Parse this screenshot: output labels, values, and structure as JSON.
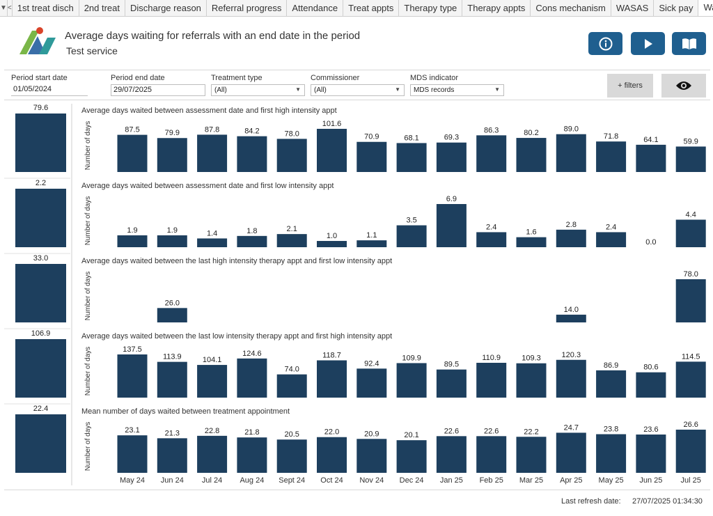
{
  "tabs": {
    "items": [
      "1st treat disch",
      "2nd treat",
      "Discharge reason",
      "Referral progress",
      "Attendance",
      "Treat appts",
      "Therapy type",
      "Therapy appts",
      "Cons mechanism",
      "WASAS",
      "Sick pay",
      "Wait"
    ],
    "active_index": 11
  },
  "header": {
    "title": "Average days waiting for referrals with an end date in the period",
    "subtitle": "Test service",
    "buttons": [
      "info-icon",
      "play-icon",
      "book-icon"
    ]
  },
  "filters": {
    "period_start": {
      "label": "Period start date",
      "value": "01/05/2024"
    },
    "period_end": {
      "label": "Period end date",
      "value": "29/07/2025"
    },
    "treatment_type": {
      "label": "Treatment type",
      "value": "(All)"
    },
    "commissioner": {
      "label": "Commissioner",
      "value": "(All)"
    },
    "mds_indicator": {
      "label": "MDS indicator",
      "value": "MDS records"
    },
    "more_filters_label": "+ filters",
    "eye_icon": "eye-icon"
  },
  "colors": {
    "bar": "#1d3f5e",
    "button": "#1f5f8f",
    "accent_green": "#7ab648",
    "accent_red": "#d9442a"
  },
  "chart_data": {
    "type": "bar",
    "categories": [
      "May 24",
      "Jun 24",
      "Jul 24",
      "Aug 24",
      "Sept 24",
      "Oct 24",
      "Nov 24",
      "Dec 24",
      "Jan 25",
      "Feb 25",
      "Mar 25",
      "Apr 25",
      "May 25",
      "Jun 25",
      "Jul 25"
    ],
    "ylabel": "Number of days",
    "panels": [
      {
        "title": "Average days waited between assessment date and first high intensity appt",
        "summary": 79.6,
        "values": [
          87.5,
          79.9,
          87.8,
          84.2,
          78.0,
          101.6,
          70.9,
          68.1,
          69.3,
          86.3,
          80.2,
          89.0,
          71.8,
          64.1,
          59.9
        ]
      },
      {
        "title": "Average days waited between assessment date and first low intensity appt",
        "summary": 2.2,
        "values": [
          1.9,
          1.9,
          1.4,
          1.8,
          2.1,
          1.0,
          1.1,
          3.5,
          6.9,
          2.4,
          1.6,
          2.8,
          2.4,
          0.0,
          4.4
        ]
      },
      {
        "title": "Average days waited between the last high intensity therapy appt and first low intensity appt",
        "summary": 33.0,
        "values": [
          null,
          26.0,
          null,
          null,
          null,
          null,
          null,
          null,
          null,
          null,
          null,
          14.0,
          null,
          null,
          78.0
        ]
      },
      {
        "title": "Average days waited between the last low intensity therapy appt and first high intensity appt",
        "summary": 106.9,
        "values": [
          137.5,
          113.9,
          104.1,
          124.6,
          74.0,
          118.7,
          92.4,
          109.9,
          89.5,
          110.9,
          109.3,
          120.3,
          86.9,
          80.6,
          114.5
        ]
      },
      {
        "title": "Mean number of days waited between treatment appointment",
        "summary": 22.4,
        "values": [
          23.1,
          21.3,
          22.8,
          21.8,
          20.5,
          22.0,
          20.9,
          20.1,
          22.6,
          22.6,
          22.2,
          24.7,
          23.8,
          23.6,
          26.6
        ]
      }
    ]
  },
  "footer": {
    "refresh_label": "Last refresh date:",
    "refresh_value": "27/07/2025 01:34:30"
  }
}
